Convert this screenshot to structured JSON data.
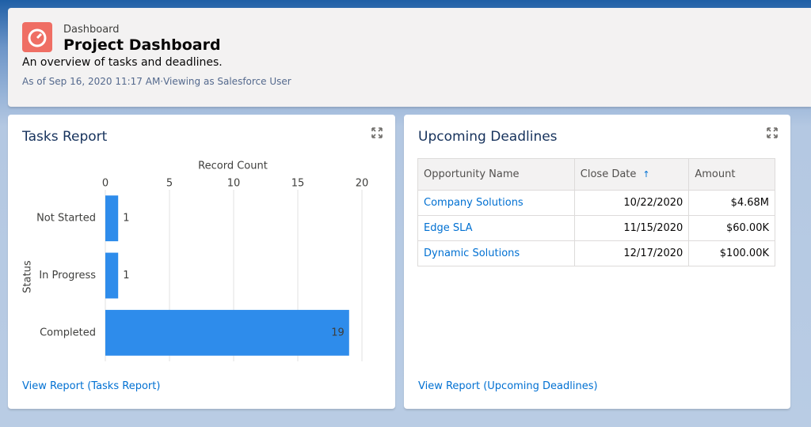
{
  "header": {
    "breadcrumb": "Dashboard",
    "title": "Project Dashboard",
    "description": "An overview of tasks and deadlines.",
    "meta": "As of Sep 16, 2020 11:17 AM·Viewing as Salesforce User"
  },
  "chart_data": {
    "type": "bar",
    "orientation": "horizontal",
    "title": "Tasks Report",
    "x_label": "Record Count",
    "y_label": "Status",
    "categories": [
      "Not Started",
      "In Progress",
      "Completed"
    ],
    "values": [
      1,
      1,
      19
    ],
    "color": "#2e8ceb",
    "xlim": [
      0,
      20
    ],
    "xticks": [
      0,
      5,
      10,
      15,
      20
    ],
    "grid": true
  },
  "tasks_link": "View Report (Tasks Report)",
  "deadlines": {
    "title": "Upcoming Deadlines",
    "columns": [
      "Opportunity Name",
      "Close Date",
      "Amount"
    ],
    "rows": [
      [
        "Company Solutions",
        "10/22/2020",
        "$4.68M"
      ],
      [
        "Edge SLA",
        "11/15/2020",
        "$60.00K"
      ],
      [
        "Dynamic Solutions",
        "12/17/2020",
        "$100.00K"
      ]
    ],
    "link": "View Report (Upcoming Deadlines)"
  }
}
